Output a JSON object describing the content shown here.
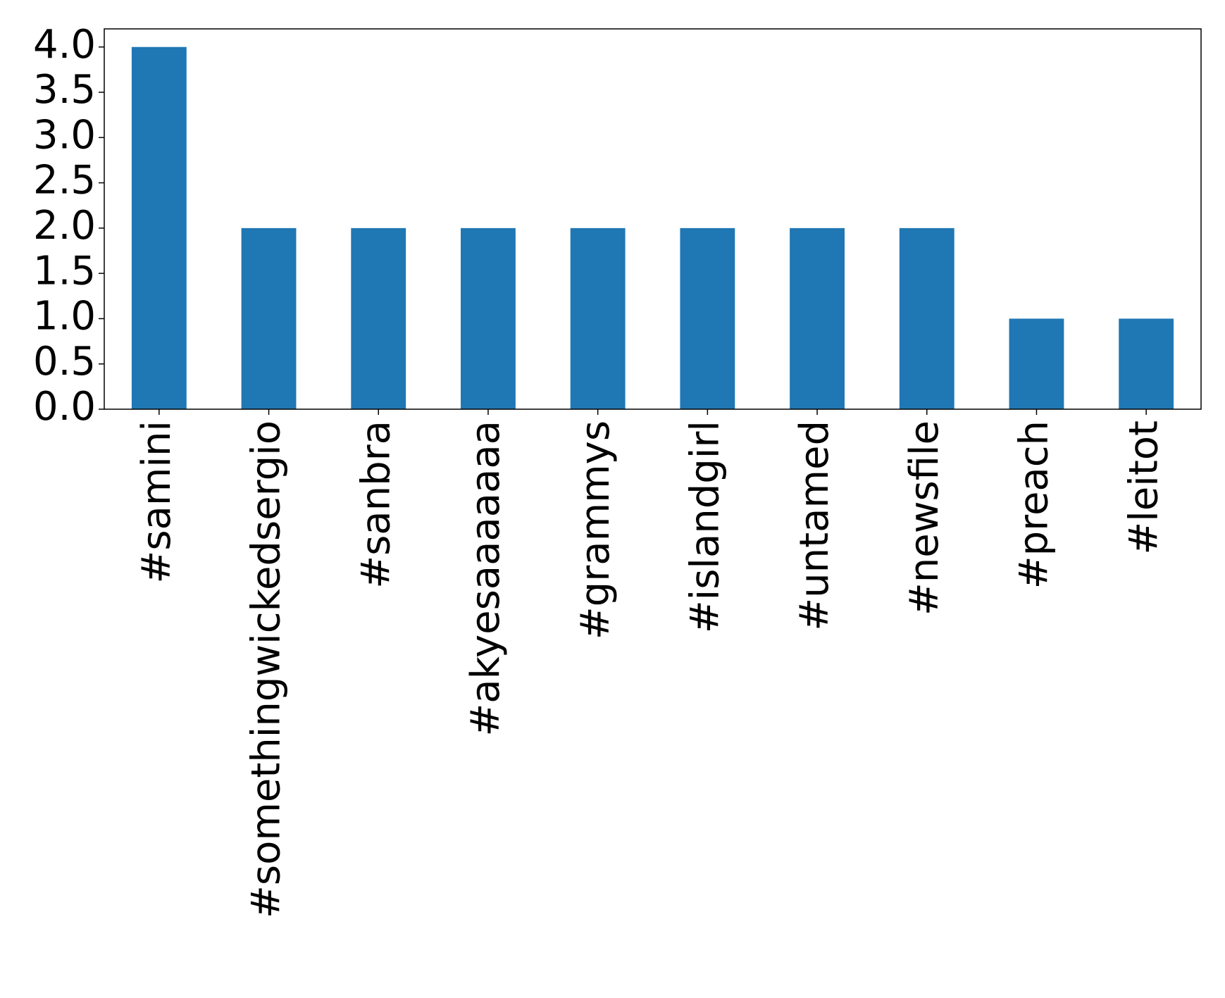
{
  "chart_data": {
    "type": "bar",
    "categories": [
      "#samini",
      "#somethingwickedsergio",
      "#sanbra",
      "#akyesaaaaaaa",
      "#grammys",
      "#islandgirl",
      "#untamed",
      "#newsfile",
      "#preach",
      "#leitot"
    ],
    "values": [
      4,
      2,
      2,
      2,
      2,
      2,
      2,
      2,
      1,
      1
    ],
    "color": "#1f77b4",
    "ylim": [
      0,
      4.2
    ],
    "yticks": [
      {
        "value": 0,
        "label": "0.0"
      },
      0.5,
      {
        "value": 1,
        "label": "1.0"
      },
      1.5,
      {
        "value": 2,
        "label": "2.0"
      },
      2.5,
      {
        "value": 3,
        "label": "3.0"
      },
      3.5,
      {
        "value": 4,
        "label": "4.0"
      }
    ],
    "grid": false
  }
}
